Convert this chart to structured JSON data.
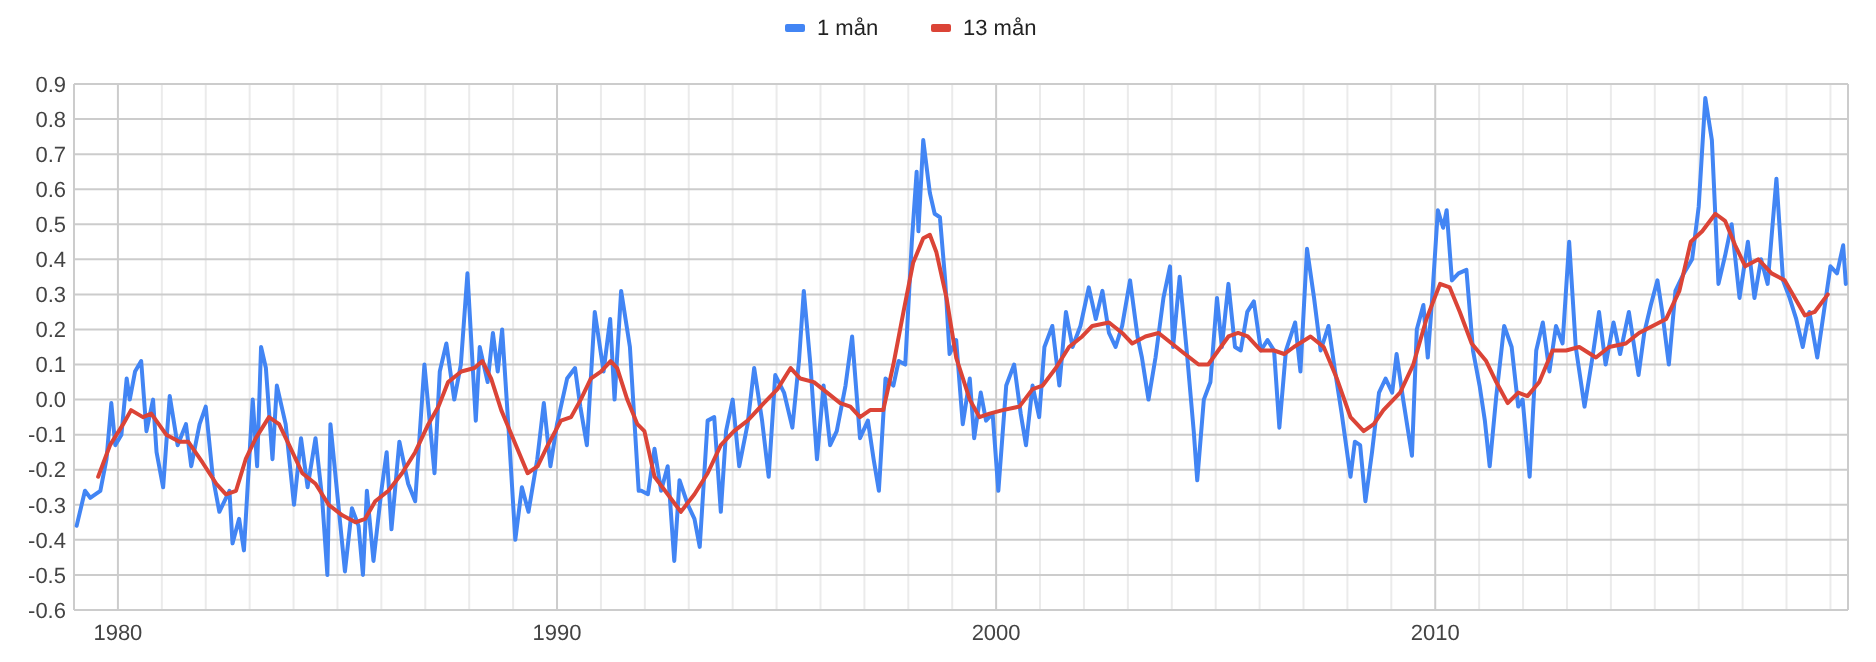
{
  "chart_data": {
    "type": "line",
    "xlim": [
      1979.0,
      2019.4
    ],
    "ylim": [
      -0.6,
      0.9
    ],
    "xticks": [
      {
        "value": 1979,
        "label": null
      },
      1980,
      {
        "value": 1981,
        "label": null
      },
      {
        "value": 1982,
        "label": null
      },
      {
        "value": 1983,
        "label": null
      },
      {
        "value": 1984,
        "label": null
      },
      {
        "value": 1985,
        "label": null
      },
      {
        "value": 1986,
        "label": null
      },
      {
        "value": 1987,
        "label": null
      },
      {
        "value": 1988,
        "label": null
      },
      {
        "value": 1989,
        "label": null
      },
      1990,
      {
        "value": 1991,
        "label": null
      },
      {
        "value": 1992,
        "label": null
      },
      {
        "value": 1993,
        "label": null
      },
      {
        "value": 1994,
        "label": null
      },
      {
        "value": 1995,
        "label": null
      },
      {
        "value": 1996,
        "label": null
      },
      {
        "value": 1997,
        "label": null
      },
      {
        "value": 1998,
        "label": null
      },
      {
        "value": 1999,
        "label": null
      },
      2000,
      {
        "value": 2001,
        "label": null
      },
      {
        "value": 2002,
        "label": null
      },
      {
        "value": 2003,
        "label": null
      },
      {
        "value": 2004,
        "label": null
      },
      {
        "value": 2005,
        "label": null
      },
      {
        "value": 2006,
        "label": null
      },
      {
        "value": 2007,
        "label": null
      },
      {
        "value": 2008,
        "label": null
      },
      {
        "value": 2009,
        "label": null
      },
      2010,
      {
        "value": 2011,
        "label": null
      },
      {
        "value": 2012,
        "label": null
      },
      {
        "value": 2013,
        "label": null
      },
      {
        "value": 2014,
        "label": null
      },
      {
        "value": 2015,
        "label": null
      },
      {
        "value": 2016,
        "label": null
      },
      {
        "value": 2017,
        "label": null
      },
      {
        "value": 2018,
        "label": null
      },
      {
        "value": 2019,
        "label": null
      }
    ],
    "yticks": [
      -0.6,
      -0.5,
      -0.4,
      -0.3,
      -0.2,
      -0.1,
      {
        "value": 0,
        "label": "0.0"
      },
      0.1,
      0.2,
      0.3,
      0.4,
      0.5,
      0.6,
      0.7,
      0.8,
      0.9
    ],
    "grid": true,
    "legend": "top",
    "marker": "none",
    "line_style": "solid",
    "series": [
      {
        "name": "1 mån",
        "color": "#4285f4",
        "x": [
          1979.06,
          1979.25,
          1979.37,
          1979.6,
          1979.74,
          1979.85,
          1979.94,
          1980.08,
          1980.2,
          1980.27,
          1980.39,
          1980.53,
          1980.65,
          1980.8,
          1980.88,
          1981.03,
          1981.18,
          1981.36,
          1981.55,
          1981.67,
          1981.86,
          1982.0,
          1982.16,
          1982.31,
          1982.54,
          1982.61,
          1982.76,
          1982.87,
          1983.07,
          1983.17,
          1983.26,
          1983.37,
          1983.52,
          1983.62,
          1983.82,
          1984.01,
          1984.17,
          1984.32,
          1984.5,
          1984.65,
          1984.77,
          1984.84,
          1985.02,
          1985.17,
          1985.33,
          1985.48,
          1985.58,
          1985.67,
          1985.82,
          1986.0,
          1986.12,
          1986.23,
          1986.41,
          1986.61,
          1986.77,
          1986.98,
          1987.21,
          1987.33,
          1987.48,
          1987.66,
          1987.81,
          1987.96,
          1988.15,
          1988.24,
          1988.42,
          1988.54,
          1988.65,
          1988.75,
          1988.9,
          1989.05,
          1989.2,
          1989.35,
          1989.55,
          1989.7,
          1989.85,
          1990.0,
          1990.23,
          1990.41,
          1990.53,
          1990.68,
          1990.86,
          1991.06,
          1991.21,
          1991.31,
          1991.46,
          1991.66,
          1991.86,
          1991.92,
          1992.07,
          1992.22,
          1992.37,
          1992.52,
          1992.67,
          1992.79,
          1992.98,
          1993.13,
          1993.25,
          1993.43,
          1993.58,
          1993.73,
          1993.85,
          1994.0,
          1994.15,
          1994.34,
          1994.49,
          1994.67,
          1994.82,
          1994.97,
          1995.17,
          1995.36,
          1995.51,
          1995.62,
          1995.77,
          1995.92,
          1996.07,
          1996.22,
          1996.37,
          1996.57,
          1996.72,
          1996.9,
          1997.08,
          1997.21,
          1997.33,
          1997.48,
          1997.66,
          1997.78,
          1997.93,
          1998.08,
          1998.19,
          1998.23,
          1998.34,
          1998.49,
          1998.6,
          1998.72,
          1998.84,
          1998.94,
          1999.09,
          1999.24,
          1999.4,
          1999.5,
          1999.65,
          1999.77,
          1999.92,
          2000.05,
          2000.23,
          2000.41,
          2000.56,
          2000.68,
          2000.83,
          2000.98,
          2001.1,
          2001.28,
          2001.44,
          2001.59,
          2001.74,
          2001.92,
          2002.11,
          2002.27,
          2002.42,
          2002.57,
          2002.72,
          2002.87,
          2003.05,
          2003.22,
          2003.32,
          2003.47,
          2003.63,
          2003.81,
          2003.96,
          2004.03,
          2004.18,
          2004.34,
          2004.5,
          2004.58,
          2004.73,
          2004.88,
          2005.03,
          2005.14,
          2005.29,
          2005.44,
          2005.57,
          2005.72,
          2005.87,
          2006.03,
          2006.18,
          2006.33,
          2006.45,
          2006.6,
          2006.81,
          2006.93,
          2007.08,
          2007.24,
          2007.39,
          2007.57,
          2007.72,
          2007.87,
          2008.07,
          2008.17,
          2008.29,
          2008.41,
          2008.56,
          2008.72,
          2008.87,
          2009.02,
          2009.12,
          2009.27,
          2009.47,
          2009.58,
          2009.73,
          2009.83,
          2009.92,
          2010.06,
          2010.18,
          2010.26,
          2010.38,
          2010.53,
          2010.71,
          2010.86,
          2011.01,
          2011.13,
          2011.24,
          2011.39,
          2011.57,
          2011.74,
          2011.89,
          2011.99,
          2012.15,
          2012.3,
          2012.45,
          2012.6,
          2012.75,
          2012.9,
          2013.05,
          2013.2,
          2013.4,
          2013.58,
          2013.73,
          2013.88,
          2014.06,
          2014.21,
          2014.41,
          2014.63,
          2014.76,
          2014.91,
          2015.06,
          2015.17,
          2015.32,
          2015.47,
          2015.66,
          2015.85,
          2016.0,
          2016.15,
          2016.3,
          2016.45,
          2016.6,
          2016.75,
          2016.93,
          2017.12,
          2017.27,
          2017.42,
          2017.57,
          2017.77,
          2017.92,
          2018.07,
          2018.22,
          2018.37,
          2018.52,
          2018.7,
          2018.85,
          2019.0,
          2019.15,
          2019.29,
          2019.35
        ],
        "values": [
          -0.36,
          -0.26,
          -0.28,
          -0.26,
          -0.17,
          -0.01,
          -0.13,
          -0.1,
          0.06,
          0.0,
          0.08,
          0.11,
          -0.09,
          0.0,
          -0.15,
          -0.25,
          0.01,
          -0.13,
          -0.07,
          -0.19,
          -0.07,
          -0.02,
          -0.22,
          -0.32,
          -0.26,
          -0.41,
          -0.34,
          -0.43,
          0.0,
          -0.19,
          0.15,
          0.09,
          -0.17,
          0.04,
          -0.07,
          -0.3,
          -0.11,
          -0.25,
          -0.11,
          -0.28,
          -0.5,
          -0.07,
          -0.3,
          -0.49,
          -0.31,
          -0.36,
          -0.5,
          -0.26,
          -0.46,
          -0.26,
          -0.15,
          -0.37,
          -0.12,
          -0.24,
          -0.29,
          0.1,
          -0.21,
          0.08,
          0.16,
          0.0,
          0.1,
          0.36,
          -0.06,
          0.15,
          0.05,
          0.19,
          0.08,
          0.2,
          -0.09,
          -0.4,
          -0.25,
          -0.32,
          -0.17,
          -0.01,
          -0.19,
          -0.07,
          0.06,
          0.09,
          -0.02,
          -0.13,
          0.25,
          0.08,
          0.23,
          0.0,
          0.31,
          0.15,
          -0.26,
          -0.26,
          -0.27,
          -0.14,
          -0.26,
          -0.19,
          -0.46,
          -0.23,
          -0.3,
          -0.34,
          -0.42,
          -0.06,
          -0.05,
          -0.32,
          -0.09,
          0.0,
          -0.19,
          -0.07,
          0.09,
          -0.06,
          -0.22,
          0.07,
          0.02,
          -0.08,
          0.11,
          0.31,
          0.1,
          -0.17,
          0.04,
          -0.13,
          -0.09,
          0.04,
          0.18,
          -0.11,
          -0.06,
          -0.17,
          -0.26,
          0.06,
          0.04,
          0.11,
          0.1,
          0.45,
          0.65,
          0.48,
          0.74,
          0.59,
          0.53,
          0.52,
          0.34,
          0.13,
          0.17,
          -0.07,
          0.06,
          -0.11,
          0.02,
          -0.06,
          -0.04,
          -0.26,
          0.04,
          0.1,
          -0.04,
          -0.13,
          0.04,
          -0.05,
          0.15,
          0.21,
          0.04,
          0.25,
          0.15,
          0.21,
          0.32,
          0.23,
          0.31,
          0.19,
          0.15,
          0.21,
          0.34,
          0.18,
          0.12,
          0.0,
          0.12,
          0.29,
          0.38,
          0.15,
          0.35,
          0.14,
          -0.09,
          -0.23,
          0.0,
          0.05,
          0.29,
          0.15,
          0.33,
          0.15,
          0.14,
          0.25,
          0.28,
          0.14,
          0.17,
          0.14,
          -0.08,
          0.14,
          0.22,
          0.08,
          0.43,
          0.29,
          0.14,
          0.21,
          0.08,
          -0.04,
          -0.22,
          -0.12,
          -0.13,
          -0.29,
          -0.15,
          0.02,
          0.06,
          0.02,
          0.13,
          0.0,
          -0.16,
          0.2,
          0.27,
          0.12,
          0.27,
          0.54,
          0.49,
          0.54,
          0.34,
          0.36,
          0.37,
          0.14,
          0.04,
          -0.06,
          -0.19,
          0.01,
          0.21,
          0.15,
          -0.02,
          0.0,
          -0.22,
          0.14,
          0.22,
          0.08,
          0.21,
          0.16,
          0.45,
          0.15,
          -0.02,
          0.12,
          0.25,
          0.1,
          0.22,
          0.13,
          0.25,
          0.07,
          0.19,
          0.27,
          0.34,
          0.25,
          0.1,
          0.31,
          0.36,
          0.4,
          0.55,
          0.86,
          0.74,
          0.33,
          0.41,
          0.5,
          0.29,
          0.45,
          0.29,
          0.4,
          0.33,
          0.63,
          0.34,
          0.29,
          0.23,
          0.15,
          0.25,
          0.12,
          0.25,
          0.38,
          0.36,
          0.44,
          0.33
        ]
      },
      {
        "name": "13 mån",
        "color": "#db4437",
        "x": [
          1979.55,
          1979.82,
          1980.12,
          1980.3,
          1980.57,
          1980.76,
          1981.1,
          1981.4,
          1981.6,
          1981.93,
          1982.24,
          1982.46,
          1982.69,
          1982.91,
          1983.14,
          1983.44,
          1983.67,
          1983.9,
          1984.2,
          1984.5,
          1984.8,
          1985.11,
          1985.41,
          1985.63,
          1985.86,
          1986.16,
          1986.47,
          1986.77,
          1987.07,
          1987.3,
          1987.52,
          1987.82,
          1988.12,
          1988.3,
          1988.5,
          1988.73,
          1989.03,
          1989.33,
          1989.56,
          1989.79,
          1990.09,
          1990.32,
          1990.54,
          1990.77,
          1991.0,
          1991.22,
          1991.37,
          1991.6,
          1991.83,
          1991.99,
          1992.22,
          1992.52,
          1992.82,
          1993.13,
          1993.43,
          1993.73,
          1994.03,
          1994.34,
          1994.71,
          1995.02,
          1995.32,
          1995.54,
          1995.85,
          1996.15,
          1996.45,
          1996.68,
          1996.9,
          1997.13,
          1997.43,
          1997.66,
          1997.89,
          1998.11,
          1998.34,
          1998.49,
          1998.64,
          1998.87,
          1999.09,
          1999.4,
          1999.62,
          1999.85,
          2000.15,
          2000.53,
          2000.83,
          2001.06,
          2001.36,
          2001.66,
          2001.96,
          2002.19,
          2002.57,
          2002.87,
          2003.1,
          2003.4,
          2003.7,
          2004.0,
          2004.3,
          2004.61,
          2004.83,
          2005.06,
          2005.29,
          2005.51,
          2005.73,
          2006.03,
          2006.33,
          2006.56,
          2006.78,
          2007.16,
          2007.46,
          2007.76,
          2008.07,
          2008.37,
          2008.6,
          2008.82,
          2009.2,
          2009.5,
          2009.8,
          2010.11,
          2010.33,
          2010.56,
          2010.83,
          2011.16,
          2011.39,
          2011.65,
          2011.89,
          2012.1,
          2012.37,
          2012.67,
          2012.98,
          2013.28,
          2013.66,
          2013.96,
          2014.34,
          2014.64,
          2014.95,
          2015.26,
          2015.56,
          2015.82,
          2016.08,
          2016.38,
          2016.6,
          2016.83,
          2017.06,
          2017.36,
          2017.66,
          2017.96,
          2018.19,
          2018.42,
          2018.64,
          2018.94
        ],
        "values": [
          -0.22,
          -0.13,
          -0.07,
          -0.03,
          -0.05,
          -0.04,
          -0.1,
          -0.12,
          -0.12,
          -0.18,
          -0.24,
          -0.27,
          -0.26,
          -0.17,
          -0.11,
          -0.05,
          -0.07,
          -0.13,
          -0.21,
          -0.24,
          -0.3,
          -0.33,
          -0.35,
          -0.34,
          -0.29,
          -0.26,
          -0.21,
          -0.15,
          -0.07,
          -0.02,
          0.05,
          0.08,
          0.09,
          0.11,
          0.06,
          -0.03,
          -0.12,
          -0.21,
          -0.19,
          -0.13,
          -0.06,
          -0.05,
          0.0,
          0.06,
          0.08,
          0.11,
          0.09,
          0.0,
          -0.07,
          -0.09,
          -0.22,
          -0.27,
          -0.32,
          -0.27,
          -0.21,
          -0.13,
          -0.09,
          -0.06,
          -0.01,
          0.03,
          0.09,
          0.06,
          0.05,
          0.02,
          -0.01,
          -0.02,
          -0.05,
          -0.03,
          -0.03,
          0.1,
          0.25,
          0.39,
          0.46,
          0.47,
          0.42,
          0.29,
          0.12,
          0.0,
          -0.05,
          -0.04,
          -0.03,
          -0.02,
          0.03,
          0.04,
          0.09,
          0.15,
          0.18,
          0.21,
          0.22,
          0.19,
          0.16,
          0.18,
          0.19,
          0.16,
          0.13,
          0.1,
          0.1,
          0.14,
          0.18,
          0.19,
          0.18,
          0.14,
          0.14,
          0.13,
          0.15,
          0.18,
          0.15,
          0.06,
          -0.05,
          -0.09,
          -0.07,
          -0.03,
          0.02,
          0.1,
          0.23,
          0.33,
          0.32,
          0.25,
          0.16,
          0.11,
          0.05,
          -0.01,
          0.02,
          0.01,
          0.05,
          0.14,
          0.14,
          0.15,
          0.12,
          0.15,
          0.16,
          0.19,
          0.21,
          0.23,
          0.31,
          0.45,
          0.48,
          0.53,
          0.51,
          0.44,
          0.38,
          0.4,
          0.36,
          0.34,
          0.29,
          0.24,
          0.25,
          0.3
        ]
      }
    ]
  }
}
